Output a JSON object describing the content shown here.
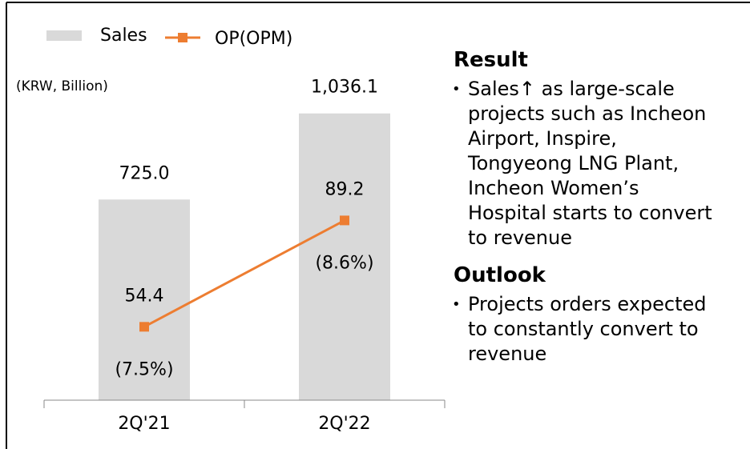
{
  "chart_data": {
    "type": "bar_line",
    "unit": "(KRW, Billion)",
    "categories": [
      "2Q'21",
      "2Q'22"
    ],
    "ylim": [
      0,
      1446
    ],
    "y2lim": [
      30.4,
      161.3
    ],
    "series": [
      {
        "name": "Sales",
        "color": "#d9d9d9",
        "type": "bar",
        "values": [
          725.0,
          1036.1
        ],
        "value_labels": [
          "725.0",
          "1,036.1"
        ]
      },
      {
        "name": "OP(OPM)",
        "color": "#ed7d31",
        "type": "line",
        "axis": "y2",
        "values": [
          54.4,
          89.2
        ],
        "value_labels": [
          "54.4",
          "89.2"
        ],
        "margins": [
          7.5,
          8.6
        ],
        "margin_labels": [
          "(7.5%)",
          "(8.6%)"
        ]
      }
    ],
    "legend": "top"
  },
  "panel": {
    "sections": [
      {
        "heading": "Result",
        "lines": [
          "Sales↑ as large-scale",
          "projects such as Incheon",
          "Airport, Inspire,",
          "Tongyeong LNG Plant,",
          "Incheon Women’s",
          "Hospital starts to convert",
          "to revenue"
        ]
      },
      {
        "heading": "Outlook",
        "lines": [
          "Projects orders expected",
          "to constantly convert to",
          "revenue"
        ]
      }
    ]
  }
}
